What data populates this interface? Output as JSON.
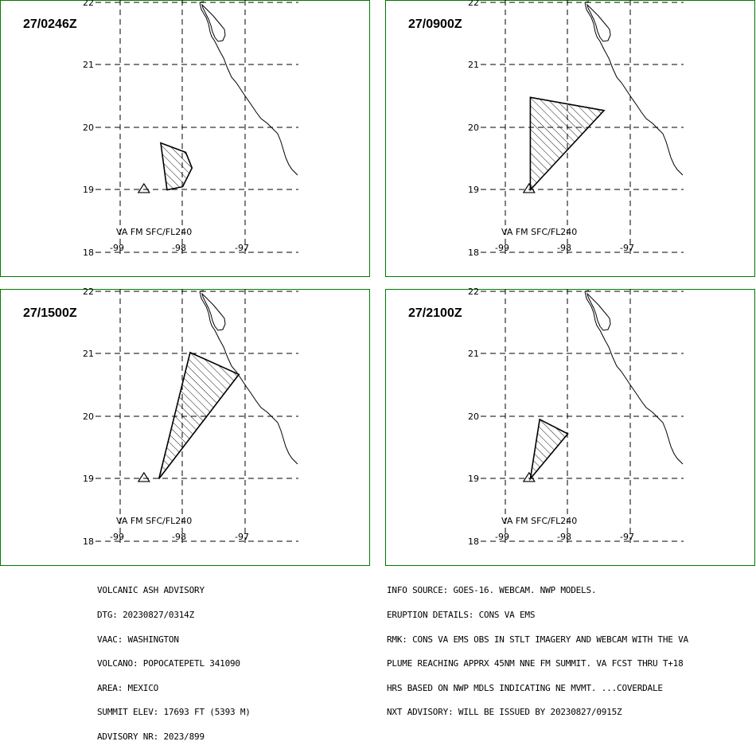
{
  "panels": [
    {
      "title": "27/0246Z",
      "va_label": "VA FM SFC/FL240",
      "ash_polygon": [
        [
          -98.35,
          19.75
        ],
        [
          -97.95,
          19.6
        ],
        [
          -97.85,
          19.35
        ],
        [
          -98.0,
          19.05
        ],
        [
          -98.25,
          19.0
        ]
      ]
    },
    {
      "title": "27/0900Z",
      "va_label": "VA FM SFC/FL240",
      "ash_polygon": [
        [
          -98.6,
          20.48
        ],
        [
          -97.42,
          20.27
        ],
        [
          -98.6,
          19.0
        ]
      ]
    },
    {
      "title": "27/1500Z",
      "va_label": "VA FM SFC/FL240",
      "ash_polygon": [
        [
          -97.88,
          21.02
        ],
        [
          -97.1,
          20.67
        ],
        [
          -98.38,
          19.0
        ]
      ]
    },
    {
      "title": "27/2100Z",
      "va_label": "VA FM SFC/FL240",
      "ash_polygon": [
        [
          -98.45,
          19.95
        ],
        [
          -98.0,
          19.72
        ],
        [
          -98.6,
          19.0
        ]
      ]
    }
  ],
  "map_axes": {
    "lat_ticks": [
      "22",
      "21",
      "20",
      "19",
      "18"
    ],
    "lon_ticks": [
      "-99",
      "-98",
      "-97"
    ]
  },
  "advisory_left": [
    "VOLCANIC ASH ADVISORY",
    "DTG: 20230827/0314Z",
    "VAAC: WASHINGTON",
    "VOLCANO: POPOCATEPETL 341090",
    "AREA: MEXICO",
    "SUMMIT ELEV: 17693 FT (5393 M)",
    "ADVISORY NR: 2023/899"
  ],
  "advisory_right": [
    "INFO SOURCE: GOES-16. WEBCAM. NWP MODELS.",
    "ERUPTION DETAILS: CONS VA EMS",
    "RMK: CONS VA EMS OBS IN STLT IMAGERY AND WEBCAM WITH THE VA",
    "PLUME REACHING APPRX 45NM NNE FM SUMMIT. VA FCST THRU T+18",
    "HRS BASED ON NWP MDLS INDICATING NE MVMT. ...COVERDALE",
    "NXT ADVISORY: WILL BE ISSUED BY 20230827/0915Z"
  ]
}
